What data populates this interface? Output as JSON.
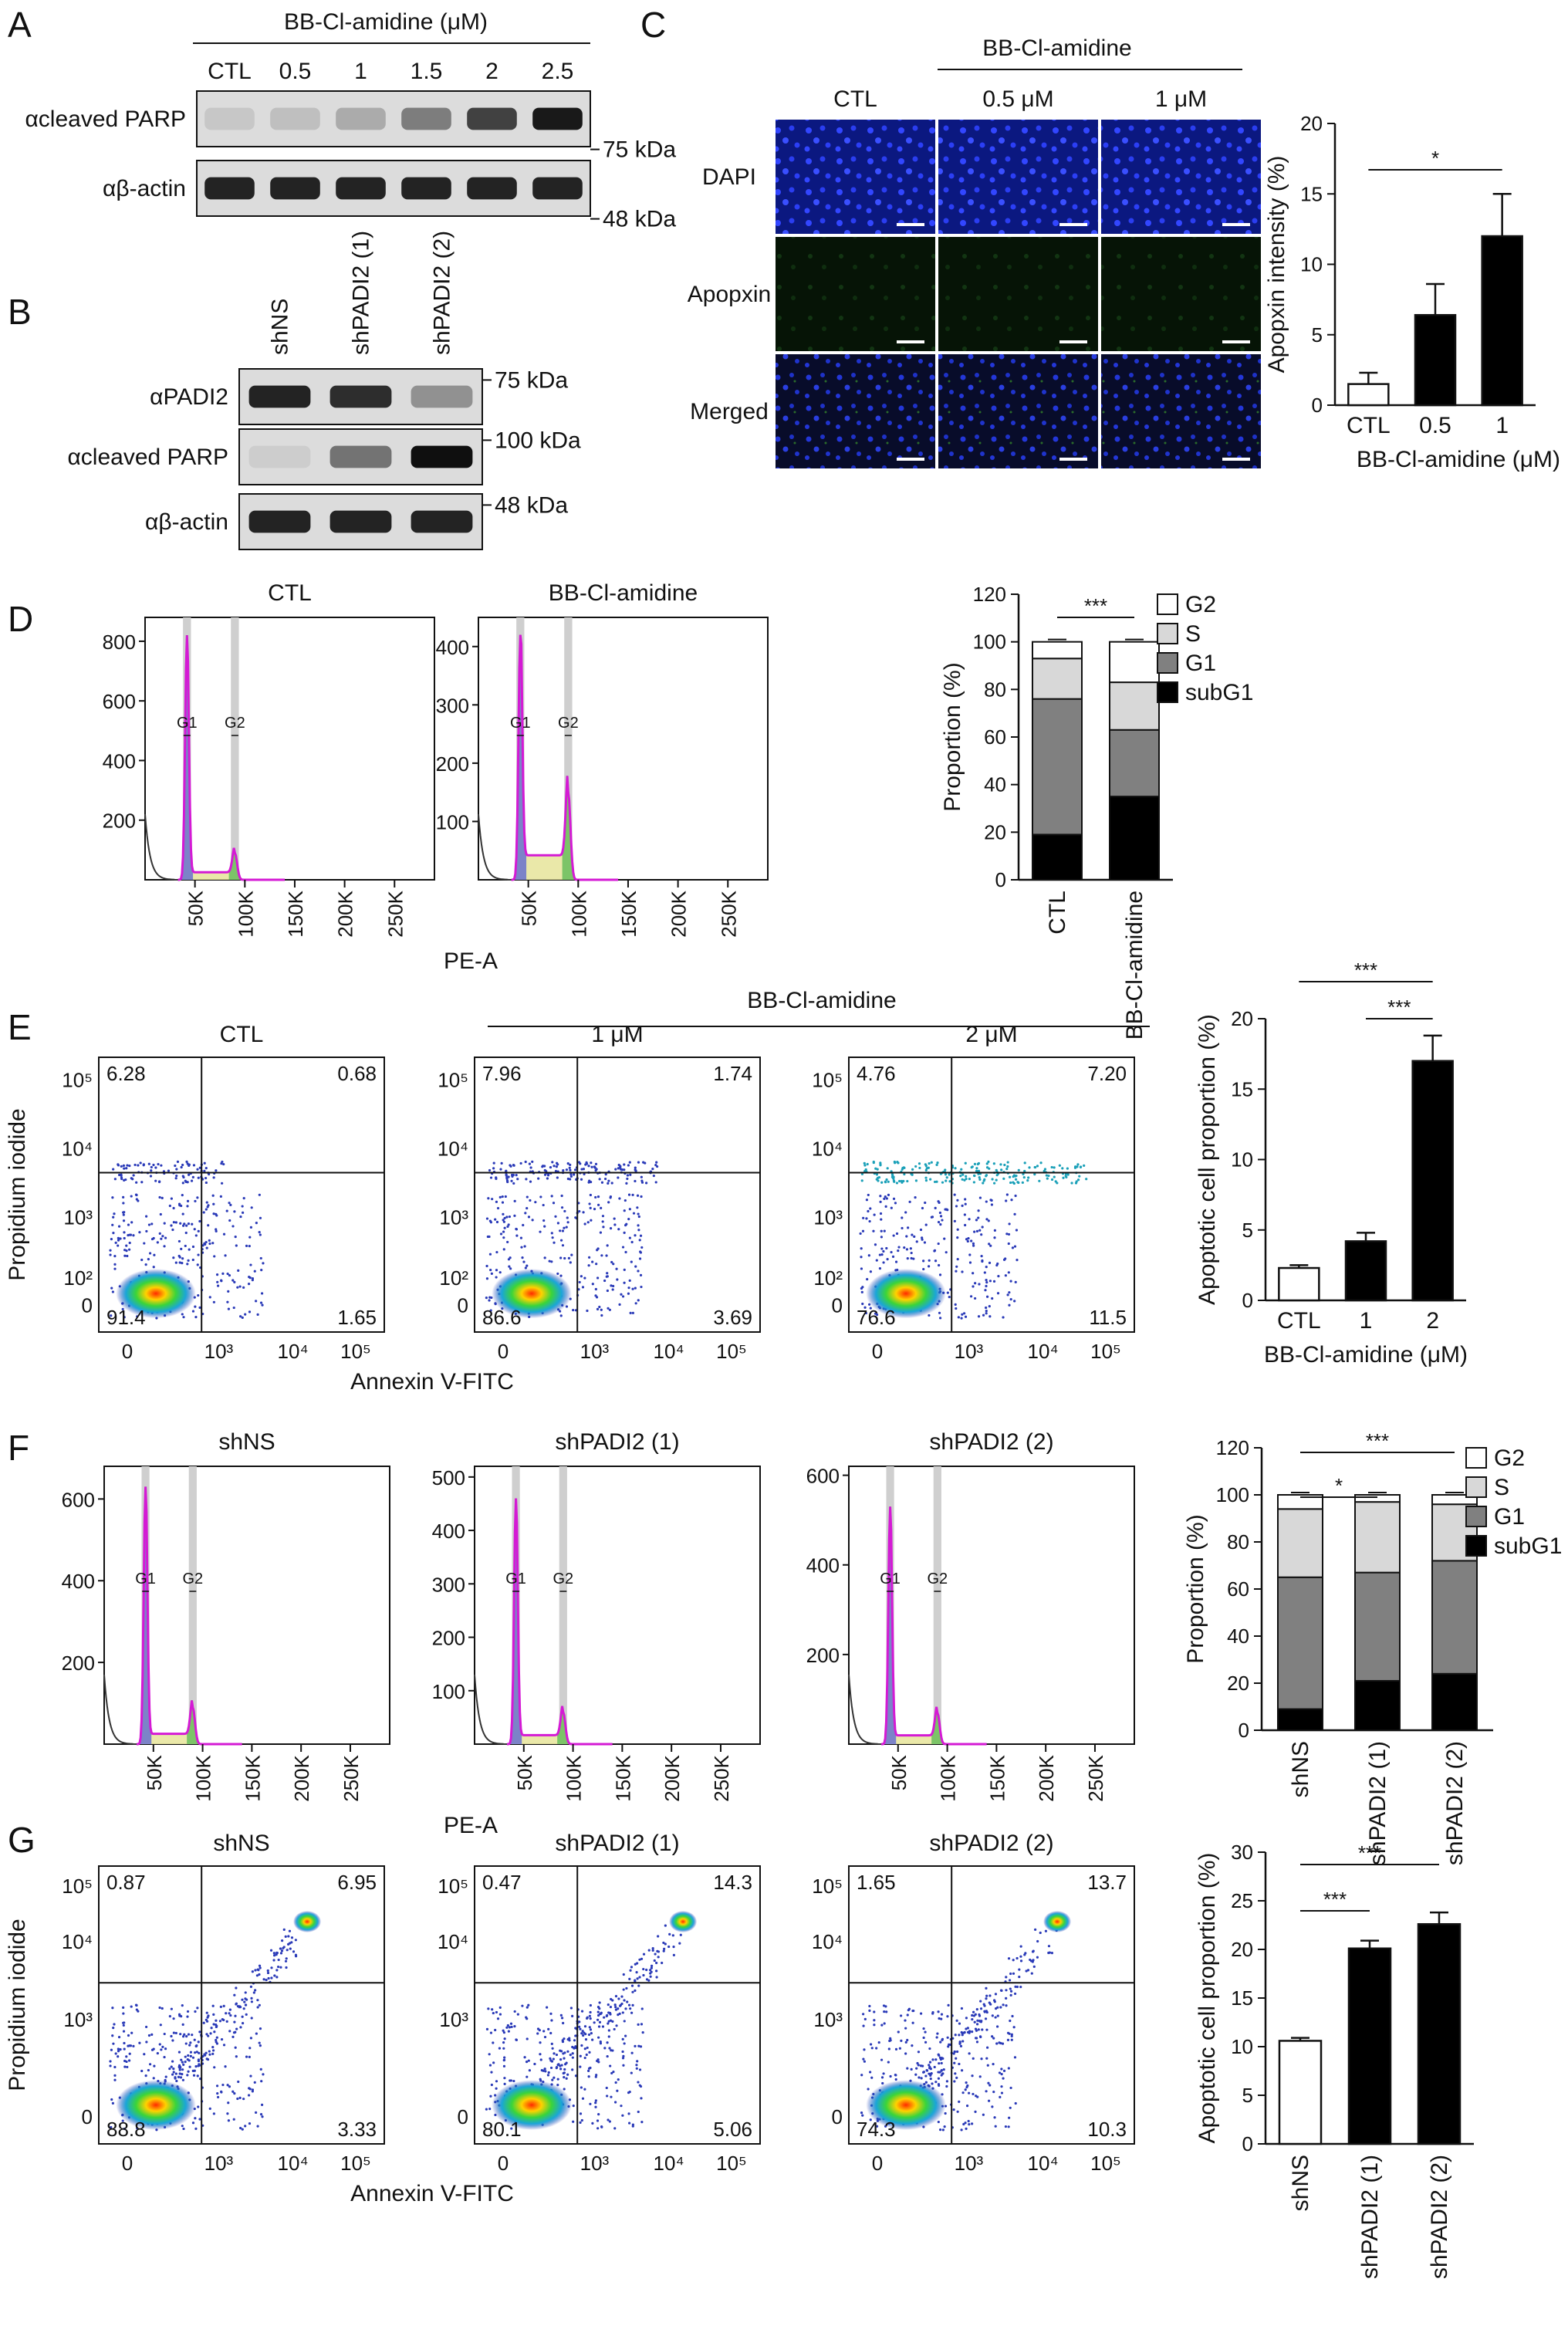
{
  "figure": {
    "panels": {
      "A": {
        "letter": "A",
        "treatment_header": "BB-Cl-amidine (μM)",
        "lanes": [
          "CTL",
          "0.5",
          "1",
          "1.5",
          "2",
          "2.5"
        ],
        "rows": [
          {
            "label": "αcleaved PARP",
            "mw": "75 kDa",
            "intensities": [
              0.08,
              0.12,
              0.22,
              0.45,
              0.75,
              0.95
            ]
          },
          {
            "label": "αβ-actin",
            "mw": "48 kDa",
            "intensities": [
              0.9,
              0.9,
              0.9,
              0.9,
              0.9,
              0.9
            ]
          }
        ]
      },
      "B": {
        "letter": "B",
        "lanes": [
          "shNS",
          "shPADI2 (1)",
          "shPADI2 (2)"
        ],
        "rows": [
          {
            "label": "αPADI2",
            "mw": "75 kDa",
            "intensities": [
              0.9,
              0.85,
              0.35
            ]
          },
          {
            "label": "αcleaved PARP",
            "mw": "100 kDa",
            "intensities": [
              0.05,
              0.5,
              1.0
            ]
          },
          {
            "label": "αβ-actin",
            "mw": "48 kDa",
            "intensities": [
              0.9,
              0.9,
              0.9
            ]
          }
        ]
      },
      "C": {
        "letter": "C",
        "treatment_header": "BB-Cl-amidine",
        "columns": [
          "CTL",
          "0.5 μM",
          "1 μM"
        ],
        "rows": [
          "DAPI",
          "Apopxin",
          "Merged"
        ],
        "chart_data": {
          "type": "bar",
          "categories": [
            "CTL",
            "0.5",
            "1"
          ],
          "values": [
            1.5,
            6.4,
            12.0
          ],
          "errors": [
            0.8,
            2.2,
            3.0
          ],
          "fills": [
            "#ffffff",
            "#000000",
            "#000000"
          ],
          "xlabel": "BB-Cl-amidine (μM)",
          "ylabel": "Apopxin intensity (%)",
          "ylim": [
            0,
            20
          ],
          "yticks": [
            0,
            5,
            10,
            15,
            20
          ],
          "significance": [
            {
              "from": 0,
              "to": 2,
              "label": "*"
            }
          ]
        }
      },
      "D": {
        "letter": "D",
        "x_axis_label": "PE-A",
        "histograms": [
          {
            "title": "CTL",
            "yticks": [
              "200",
              "400",
              "600",
              "800"
            ],
            "ymax": 880,
            "g1_peak": 820,
            "g2_peak": 90
          },
          {
            "title": "BB-Cl-amidine",
            "yticks": [
              "100",
              "200",
              "300",
              "400"
            ],
            "ymax": 450,
            "g1_peak": 420,
            "g2_peak": 150
          }
        ],
        "xticks": [
          "50K",
          "100K",
          "150K",
          "200K",
          "250K"
        ],
        "gate_labels": [
          "G1",
          "G2"
        ],
        "chart_data": {
          "type": "bar",
          "stacked": true,
          "categories": [
            "CTL",
            "BB-Cl-amidine"
          ],
          "series": [
            {
              "name": "subG1",
              "values": [
                19,
                35
              ],
              "color": "#000000"
            },
            {
              "name": "G1",
              "values": [
                57,
                28
              ],
              "color": "#808080"
            },
            {
              "name": "S",
              "values": [
                17,
                20
              ],
              "color": "#d8d8d8"
            },
            {
              "name": "G2",
              "values": [
                7,
                17
              ],
              "color": "#ffffff"
            }
          ],
          "ylabel": "Proportion (%)",
          "ylim": [
            0,
            120
          ],
          "yticks": [
            0,
            20,
            40,
            60,
            80,
            100,
            120
          ],
          "legend": "top-right",
          "significance": [
            {
              "from": 0,
              "to": 1,
              "label": "***"
            }
          ]
        }
      },
      "E": {
        "letter": "E",
        "treatment_header": "BB-Cl-amidine",
        "xlabel": "Annexin V-FITC",
        "ylabel": "Propidium iodide",
        "xticks": [
          "0",
          "10³",
          "10⁴",
          "10⁵"
        ],
        "yticks": [
          "0",
          "10²",
          "10³",
          "10⁴",
          "10⁵"
        ],
        "plots": [
          {
            "title": "CTL",
            "quadrants": {
              "ul": "6.28",
              "ur": "0.68",
              "ll": "91.4",
              "lr": "1.65"
            }
          },
          {
            "title": "1 μM",
            "quadrants": {
              "ul": "7.96",
              "ur": "1.74",
              "ll": "86.6",
              "lr": "3.69"
            }
          },
          {
            "title": "2 μM",
            "quadrants": {
              "ul": "4.76",
              "ur": "7.20",
              "ll": "76.6",
              "lr": "11.5"
            }
          }
        ],
        "chart_data": {
          "type": "bar",
          "categories": [
            "CTL",
            "1",
            "2"
          ],
          "values": [
            2.3,
            4.2,
            17.0
          ],
          "errors": [
            0.2,
            0.6,
            1.8
          ],
          "fills": [
            "#ffffff",
            "#000000",
            "#000000"
          ],
          "xlabel": "BB-Cl-amidine (μM)",
          "ylabel": "Apoptotic cell proportion (%)",
          "ylim": [
            0,
            20
          ],
          "yticks": [
            0,
            5,
            10,
            15,
            20
          ],
          "significance": [
            {
              "from": 0,
              "to": 2,
              "label": "***"
            },
            {
              "from": 1,
              "to": 2,
              "label": "***"
            }
          ]
        }
      },
      "F": {
        "letter": "F",
        "x_axis_label": "PE-A",
        "histograms": [
          {
            "title": "shNS",
            "yticks": [
              "200",
              "400",
              "600"
            ],
            "ymax": 680,
            "g1_peak": 630,
            "g2_peak": 90
          },
          {
            "title": "shPADI2 (1)",
            "yticks": [
              "100",
              "200",
              "300",
              "400",
              "500"
            ],
            "ymax": 520,
            "g1_peak": 460,
            "g2_peak": 60
          },
          {
            "title": "shPADI2 (2)",
            "yticks": [
              "200",
              "400",
              "600"
            ],
            "ymax": 620,
            "g1_peak": 530,
            "g2_peak": 70
          }
        ],
        "xticks": [
          "50K",
          "100K",
          "150K",
          "200K",
          "250K"
        ],
        "gate_labels": [
          "G1",
          "G2"
        ],
        "chart_data": {
          "type": "bar",
          "stacked": true,
          "categories": [
            "shNS",
            "shPADI2 (1)",
            "shPADI2 (2)"
          ],
          "series": [
            {
              "name": "subG1",
              "values": [
                9,
                21,
                24
              ],
              "color": "#000000"
            },
            {
              "name": "G1",
              "values": [
                56,
                46,
                48
              ],
              "color": "#808080"
            },
            {
              "name": "S",
              "values": [
                29,
                30,
                24
              ],
              "color": "#d8d8d8"
            },
            {
              "name": "G2",
              "values": [
                6,
                3,
                4
              ],
              "color": "#ffffff"
            }
          ],
          "ylabel": "Proportion (%)",
          "ylim": [
            0,
            120
          ],
          "yticks": [
            0,
            20,
            40,
            60,
            80,
            100,
            120
          ],
          "legend": "top-right",
          "significance": [
            {
              "from": 0,
              "to": 1,
              "label": "*"
            },
            {
              "from": 0,
              "to": 2,
              "label": "***"
            }
          ]
        }
      },
      "G": {
        "letter": "G",
        "xlabel": "Annexin V-FITC",
        "ylabel": "Propidium iodide",
        "xticks": [
          "0",
          "10³",
          "10⁴",
          "10⁵"
        ],
        "yticks": [
          "0",
          "10³",
          "10⁴",
          "10⁵"
        ],
        "plots": [
          {
            "title": "shNS",
            "quadrants": {
              "ul": "0.87",
              "ur": "6.95",
              "ll": "88.8",
              "lr": "3.33"
            }
          },
          {
            "title": "shPADI2 (1)",
            "quadrants": {
              "ul": "0.47",
              "ur": "14.3",
              "ll": "80.1",
              "lr": "5.06"
            }
          },
          {
            "title": "shPADI2 (2)",
            "quadrants": {
              "ul": "1.65",
              "ur": "13.7",
              "ll": "74.3",
              "lr": "10.3"
            }
          }
        ],
        "chart_data": {
          "type": "bar",
          "categories": [
            "shNS",
            "shPADI2 (1)",
            "shPADI2 (2)"
          ],
          "values": [
            10.6,
            20.1,
            22.6
          ],
          "errors": [
            0.3,
            0.8,
            1.2
          ],
          "fills": [
            "#ffffff",
            "#000000",
            "#000000"
          ],
          "ylabel": "Apoptotic cell proportion (%)",
          "ylim": [
            0,
            30
          ],
          "yticks": [
            0,
            5,
            10,
            15,
            20,
            25,
            30
          ],
          "significance": [
            {
              "from": 0,
              "to": 1,
              "label": "***"
            },
            {
              "from": 0,
              "to": 2,
              "label": "***"
            }
          ]
        }
      }
    }
  }
}
